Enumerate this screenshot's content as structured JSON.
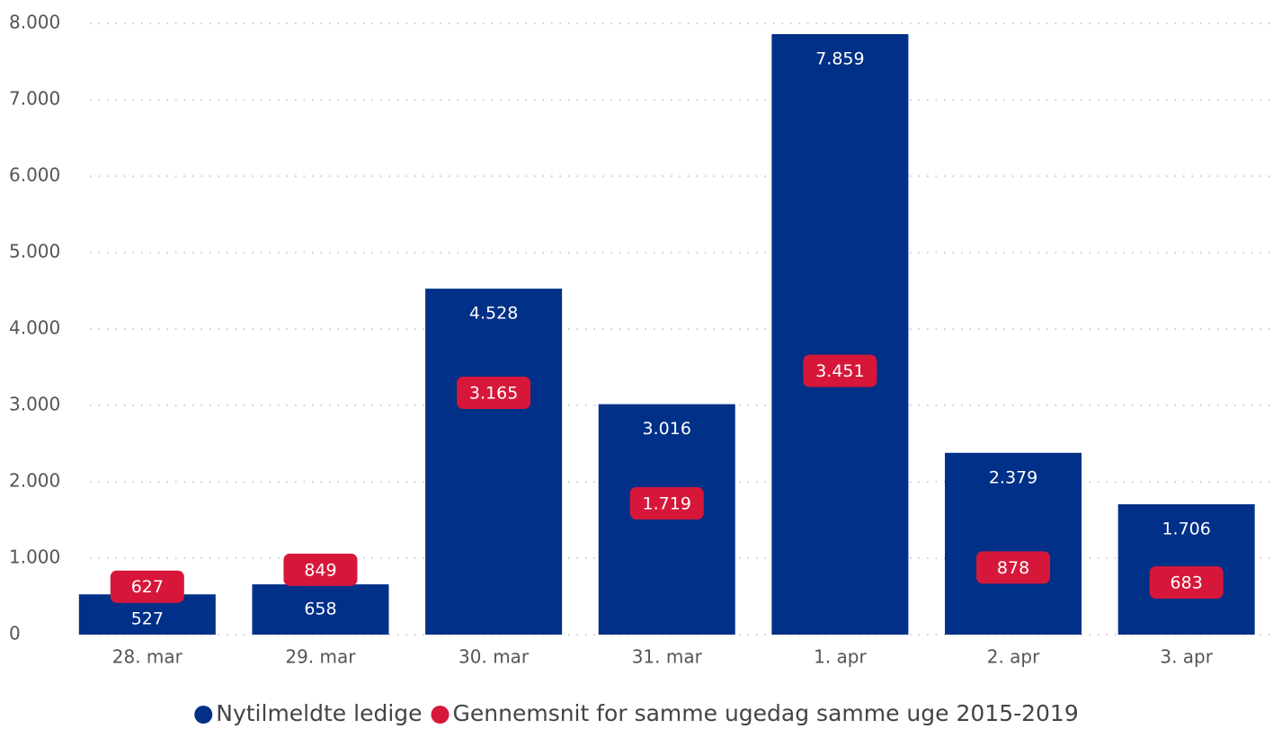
{
  "chart_data": {
    "type": "bar",
    "categories": [
      "28. mar",
      "29. mar",
      "30. mar",
      "31. mar",
      "1. apr",
      "2. apr",
      "3. apr"
    ],
    "series": [
      {
        "name": "Nytilmeldte ledige",
        "color": "#003087",
        "type": "bar",
        "values": [
          527,
          658,
          4528,
          3016,
          7859,
          2379,
          1706
        ],
        "value_labels": [
          "527",
          "658",
          "4.528",
          "3.016",
          "7.859",
          "2.379",
          "1.706"
        ]
      },
      {
        "name": "Gennemsnit for samme ugedag samme uge 2015-2019",
        "color": "#d6173a",
        "type": "label",
        "values": [
          627,
          849,
          3165,
          1719,
          3451,
          878,
          683
        ],
        "value_labels": [
          "627",
          "849",
          "3.165",
          "1.719",
          "3.451",
          "878",
          "683"
        ]
      }
    ],
    "ylim": [
      0,
      8000
    ],
    "yticks": [
      0,
      {
        "value": 1000,
        "label": "1.000"
      },
      {
        "value": 2000,
        "label": "2.000"
      },
      {
        "value": 3000,
        "label": "3.000"
      },
      {
        "value": 4000,
        "label": "4.000"
      },
      {
        "value": 5000,
        "label": "5.000"
      },
      {
        "value": 6000,
        "label": "6.000"
      },
      {
        "value": 7000,
        "label": "7.000"
      },
      {
        "value": 8000,
        "label": "8.000"
      }
    ],
    "grid": true,
    "legend": "bottom"
  }
}
